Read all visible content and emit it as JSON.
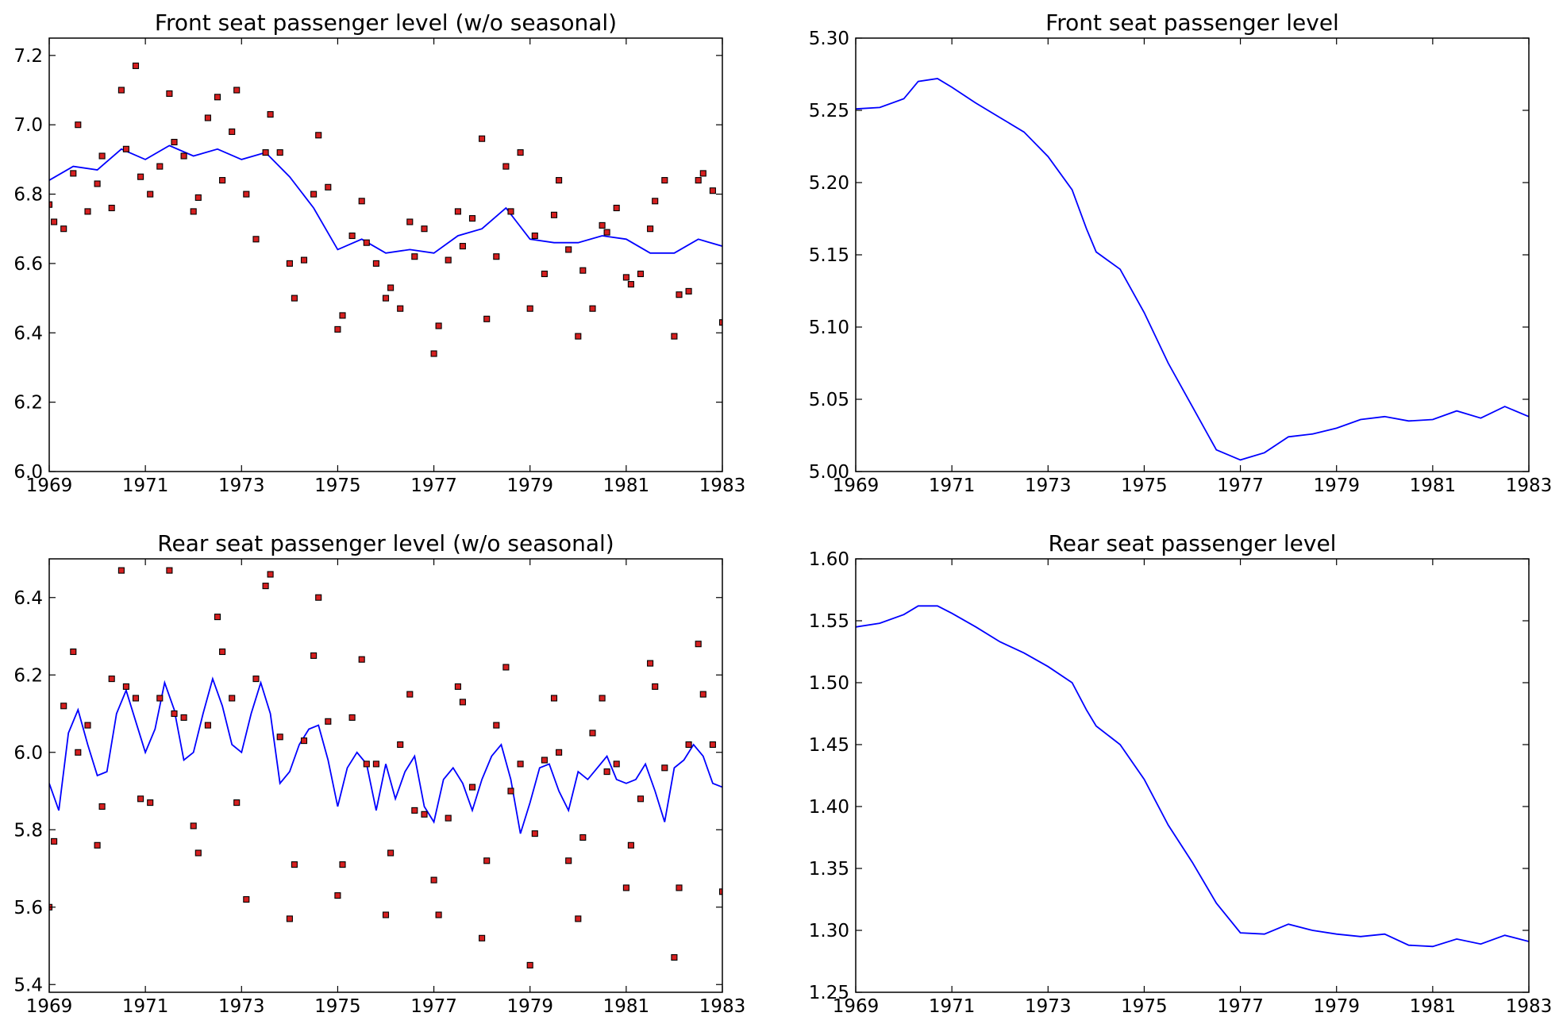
{
  "chart_data": [
    {
      "type": "scatter",
      "title": "Front seat passenger level (w/o seasonal)",
      "xlabel": "",
      "ylabel": "",
      "xlim": [
        1969,
        1983
      ],
      "ylim": [
        6.0,
        7.25
      ],
      "xticks": [
        1969,
        1971,
        1973,
        1975,
        1977,
        1979,
        1981,
        1983
      ],
      "xtick_labels": [
        "1969",
        "1971",
        "1973",
        "1975",
        "1977",
        "1979",
        "1981",
        "1983"
      ],
      "yticks": [
        6.0,
        6.2,
        6.4,
        6.6,
        6.8,
        7.0,
        7.2
      ],
      "ytick_labels": [
        "6.0",
        "6.2",
        "6.4",
        "6.6",
        "6.8",
        "7.0",
        "7.2"
      ],
      "grid": false,
      "series": [
        {
          "kind": "line",
          "color": "#0000ff",
          "x": [
            1969.0,
            1969.5,
            1970.0,
            1970.5,
            1971.0,
            1971.5,
            1972.0,
            1972.5,
            1973.0,
            1973.5,
            1974.0,
            1974.5,
            1975.0,
            1975.5,
            1976.0,
            1976.5,
            1977.0,
            1977.5,
            1978.0,
            1978.5,
            1979.0,
            1979.5,
            1980.0,
            1980.5,
            1981.0,
            1981.5,
            1982.0,
            1982.5,
            1983.0
          ],
          "y": [
            6.84,
            6.88,
            6.87,
            6.93,
            6.9,
            6.94,
            6.91,
            6.93,
            6.9,
            6.92,
            6.85,
            6.76,
            6.64,
            6.67,
            6.63,
            6.64,
            6.63,
            6.68,
            6.7,
            6.76,
            6.67,
            6.66,
            6.66,
            6.68,
            6.67,
            6.63,
            6.63,
            6.67,
            6.65
          ]
        },
        {
          "kind": "scatter",
          "color": "#d62020",
          "x": [
            1969.0,
            1969.1,
            1969.3,
            1969.5,
            1969.6,
            1969.8,
            1970.0,
            1970.1,
            1970.3,
            1970.5,
            1970.6,
            1970.8,
            1970.9,
            1971.1,
            1971.3,
            1971.5,
            1971.6,
            1971.8,
            1972.0,
            1972.1,
            1972.3,
            1972.5,
            1972.6,
            1972.8,
            1972.9,
            1973.1,
            1973.3,
            1973.5,
            1973.6,
            1973.8,
            1974.0,
            1974.1,
            1974.3,
            1974.5,
            1974.6,
            1974.8,
            1975.0,
            1975.1,
            1975.3,
            1975.5,
            1975.6,
            1975.8,
            1976.0,
            1976.1,
            1976.3,
            1976.5,
            1976.6,
            1976.8,
            1977.0,
            1977.1,
            1977.3,
            1977.5,
            1977.6,
            1977.8,
            1978.0,
            1978.1,
            1978.3,
            1978.5,
            1978.6,
            1978.8,
            1979.0,
            1979.1,
            1979.3,
            1979.5,
            1979.6,
            1979.8,
            1980.0,
            1980.1,
            1980.3,
            1980.5,
            1980.6,
            1980.8,
            1981.0,
            1981.1,
            1981.3,
            1981.5,
            1981.6,
            1981.8,
            1982.0,
            1982.1,
            1982.3,
            1982.5,
            1982.6,
            1982.8,
            1983.0
          ],
          "y": [
            6.77,
            6.72,
            6.7,
            6.86,
            7.0,
            6.75,
            6.83,
            6.91,
            6.76,
            7.1,
            6.93,
            7.17,
            6.85,
            6.8,
            6.88,
            7.09,
            6.95,
            6.91,
            6.75,
            6.79,
            7.02,
            7.08,
            6.84,
            6.98,
            7.1,
            6.8,
            6.67,
            6.92,
            7.03,
            6.92,
            6.6,
            6.5,
            6.61,
            6.8,
            6.97,
            6.82,
            6.41,
            6.45,
            6.68,
            6.78,
            6.66,
            6.6,
            6.5,
            6.53,
            6.47,
            6.72,
            6.62,
            6.7,
            6.34,
            6.42,
            6.61,
            6.75,
            6.65,
            6.73,
            6.96,
            6.44,
            6.62,
            6.88,
            6.75,
            6.92,
            6.47,
            6.68,
            6.57,
            6.74,
            6.84,
            6.64,
            6.39,
            6.58,
            6.47,
            6.71,
            6.69,
            6.76,
            6.56,
            6.54,
            6.57,
            6.7,
            6.78,
            6.84,
            6.39,
            6.51,
            6.52,
            6.84,
            6.86,
            6.81,
            6.43
          ]
        }
      ]
    },
    {
      "type": "line",
      "title": "Front seat passenger level",
      "xlabel": "",
      "ylabel": "",
      "xlim": [
        1969,
        1983
      ],
      "ylim": [
        5.0,
        5.3
      ],
      "xticks": [
        1969,
        1971,
        1973,
        1975,
        1977,
        1979,
        1981,
        1983
      ],
      "xtick_labels": [
        "1969",
        "1971",
        "1973",
        "1975",
        "1977",
        "1979",
        "1981",
        "1983"
      ],
      "yticks": [
        5.0,
        5.05,
        5.1,
        5.15,
        5.2,
        5.25,
        5.3
      ],
      "ytick_labels": [
        "5.00",
        "5.05",
        "5.10",
        "5.15",
        "5.20",
        "5.25",
        "5.30"
      ],
      "grid": false,
      "series": [
        {
          "kind": "line",
          "color": "#0000ff",
          "x": [
            1969.0,
            1969.5,
            1970.0,
            1970.3,
            1970.7,
            1971.0,
            1971.5,
            1972.0,
            1972.5,
            1973.0,
            1973.5,
            1973.8,
            1974.0,
            1974.5,
            1975.0,
            1975.5,
            1976.0,
            1976.5,
            1977.0,
            1977.5,
            1978.0,
            1978.5,
            1979.0,
            1979.5,
            1980.0,
            1980.5,
            1981.0,
            1981.5,
            1982.0,
            1982.5,
            1983.0
          ],
          "y": [
            5.251,
            5.252,
            5.258,
            5.27,
            5.272,
            5.266,
            5.255,
            5.245,
            5.235,
            5.218,
            5.195,
            5.168,
            5.152,
            5.14,
            5.11,
            5.075,
            5.045,
            5.015,
            5.008,
            5.013,
            5.024,
            5.026,
            5.03,
            5.036,
            5.038,
            5.035,
            5.036,
            5.042,
            5.037,
            5.045,
            5.038
          ]
        }
      ]
    },
    {
      "type": "scatter",
      "title": "Rear seat passenger level (w/o seasonal)",
      "xlabel": "",
      "ylabel": "",
      "xlim": [
        1969,
        1983
      ],
      "ylim": [
        5.38,
        6.5
      ],
      "xticks": [
        1969,
        1971,
        1973,
        1975,
        1977,
        1979,
        1981,
        1983
      ],
      "xtick_labels": [
        "1969",
        "1971",
        "1973",
        "1975",
        "1977",
        "1979",
        "1981",
        "1983"
      ],
      "yticks": [
        5.4,
        5.6,
        5.8,
        6.0,
        6.2,
        6.4
      ],
      "ytick_labels": [
        "5.4",
        "5.6",
        "5.8",
        "6.0",
        "6.2",
        "6.4"
      ],
      "grid": false,
      "series": [
        {
          "kind": "line",
          "color": "#0000ff",
          "x": [
            1969.0,
            1969.2,
            1969.4,
            1969.6,
            1969.8,
            1970.0,
            1970.2,
            1970.4,
            1970.6,
            1970.8,
            1971.0,
            1971.2,
            1971.4,
            1971.6,
            1971.8,
            1972.0,
            1972.2,
            1972.4,
            1972.6,
            1972.8,
            1973.0,
            1973.2,
            1973.4,
            1973.6,
            1973.8,
            1974.0,
            1974.2,
            1974.4,
            1974.6,
            1974.8,
            1975.0,
            1975.2,
            1975.4,
            1975.6,
            1975.8,
            1976.0,
            1976.2,
            1976.4,
            1976.6,
            1976.8,
            1977.0,
            1977.2,
            1977.4,
            1977.6,
            1977.8,
            1978.0,
            1978.2,
            1978.4,
            1978.6,
            1978.8,
            1979.0,
            1979.2,
            1979.4,
            1979.6,
            1979.8,
            1980.0,
            1980.2,
            1980.4,
            1980.6,
            1980.8,
            1981.0,
            1981.2,
            1981.4,
            1981.6,
            1981.8,
            1982.0,
            1982.2,
            1982.4,
            1982.6,
            1982.8,
            1983.0
          ],
          "y": [
            5.92,
            5.85,
            6.05,
            6.11,
            6.02,
            5.94,
            5.95,
            6.1,
            6.16,
            6.08,
            6.0,
            6.06,
            6.18,
            6.11,
            5.98,
            6.0,
            6.1,
            6.19,
            6.12,
            6.02,
            6.0,
            6.1,
            6.18,
            6.1,
            5.92,
            5.95,
            6.02,
            6.06,
            6.07,
            5.98,
            5.86,
            5.96,
            6.0,
            5.97,
            5.85,
            5.97,
            5.88,
            5.95,
            5.99,
            5.86,
            5.82,
            5.93,
            5.96,
            5.92,
            5.85,
            5.93,
            5.99,
            6.02,
            5.93,
            5.79,
            5.87,
            5.96,
            5.97,
            5.9,
            5.85,
            5.95,
            5.93,
            5.96,
            5.99,
            5.93,
            5.92,
            5.93,
            5.97,
            5.9,
            5.82,
            5.96,
            5.98,
            6.02,
            5.99,
            5.92,
            5.91
          ]
        },
        {
          "kind": "scatter",
          "color": "#d62020",
          "x": [
            1969.0,
            1969.1,
            1969.3,
            1969.5,
            1969.6,
            1969.8,
            1970.0,
            1970.1,
            1970.3,
            1970.5,
            1970.6,
            1970.8,
            1970.9,
            1971.1,
            1971.3,
            1971.5,
            1971.6,
            1971.8,
            1972.0,
            1972.1,
            1972.3,
            1972.5,
            1972.6,
            1972.8,
            1972.9,
            1973.1,
            1973.3,
            1973.5,
            1973.6,
            1973.8,
            1974.0,
            1974.1,
            1974.3,
            1974.5,
            1974.6,
            1974.8,
            1975.0,
            1975.1,
            1975.3,
            1975.5,
            1975.6,
            1975.8,
            1976.0,
            1976.1,
            1976.3,
            1976.5,
            1976.6,
            1976.8,
            1977.0,
            1977.1,
            1977.3,
            1977.5,
            1977.6,
            1977.8,
            1978.0,
            1978.1,
            1978.3,
            1978.5,
            1978.6,
            1978.8,
            1979.0,
            1979.1,
            1979.3,
            1979.5,
            1979.6,
            1979.8,
            1980.0,
            1980.1,
            1980.3,
            1980.5,
            1980.6,
            1980.8,
            1981.0,
            1981.1,
            1981.3,
            1981.5,
            1981.6,
            1981.8,
            1982.0,
            1982.1,
            1982.3,
            1982.5,
            1982.6,
            1982.8,
            1983.0
          ],
          "y": [
            5.6,
            5.77,
            6.12,
            6.26,
            6.0,
            6.07,
            5.76,
            5.86,
            6.19,
            6.47,
            6.17,
            6.14,
            5.88,
            5.87,
            6.14,
            6.47,
            6.1,
            6.09,
            5.81,
            5.74,
            6.07,
            6.35,
            6.26,
            6.14,
            5.87,
            5.62,
            6.19,
            6.43,
            6.46,
            6.04,
            5.57,
            5.71,
            6.03,
            6.25,
            6.4,
            6.08,
            5.63,
            5.71,
            6.09,
            6.24,
            5.97,
            5.97,
            5.58,
            5.74,
            6.02,
            6.15,
            5.85,
            5.84,
            5.67,
            5.58,
            5.83,
            6.17,
            6.13,
            5.91,
            5.52,
            5.72,
            6.07,
            6.22,
            5.9,
            5.97,
            5.45,
            5.79,
            5.98,
            6.14,
            6.0,
            5.72,
            5.57,
            5.78,
            6.05,
            6.14,
            5.95,
            5.97,
            5.65,
            5.76,
            5.88,
            6.23,
            6.17,
            5.96,
            5.47,
            5.65,
            6.02,
            6.28,
            6.15,
            6.02,
            5.64
          ]
        }
      ]
    },
    {
      "type": "line",
      "title": "Rear seat passenger level",
      "xlabel": "",
      "ylabel": "",
      "xlim": [
        1969,
        1983
      ],
      "ylim": [
        1.25,
        1.6
      ],
      "xticks": [
        1969,
        1971,
        1973,
        1975,
        1977,
        1979,
        1981,
        1983
      ],
      "xtick_labels": [
        "1969",
        "1971",
        "1973",
        "1975",
        "1977",
        "1979",
        "1981",
        "1983"
      ],
      "yticks": [
        1.25,
        1.3,
        1.35,
        1.4,
        1.45,
        1.5,
        1.55,
        1.6
      ],
      "ytick_labels": [
        "1.25",
        "1.30",
        "1.35",
        "1.40",
        "1.45",
        "1.50",
        "1.55",
        "1.60"
      ],
      "grid": false,
      "series": [
        {
          "kind": "line",
          "color": "#0000ff",
          "x": [
            1969.0,
            1969.5,
            1970.0,
            1970.3,
            1970.7,
            1971.0,
            1971.5,
            1972.0,
            1972.5,
            1973.0,
            1973.5,
            1973.8,
            1974.0,
            1974.5,
            1975.0,
            1975.5,
            1976.0,
            1976.5,
            1977.0,
            1977.5,
            1978.0,
            1978.5,
            1979.0,
            1979.5,
            1980.0,
            1980.5,
            1981.0,
            1981.5,
            1982.0,
            1982.5,
            1983.0
          ],
          "y": [
            1.545,
            1.548,
            1.555,
            1.562,
            1.562,
            1.556,
            1.545,
            1.533,
            1.524,
            1.513,
            1.5,
            1.478,
            1.465,
            1.45,
            1.422,
            1.385,
            1.355,
            1.322,
            1.298,
            1.297,
            1.305,
            1.3,
            1.297,
            1.295,
            1.297,
            1.288,
            1.287,
            1.293,
            1.289,
            1.296,
            1.291
          ]
        }
      ]
    }
  ]
}
